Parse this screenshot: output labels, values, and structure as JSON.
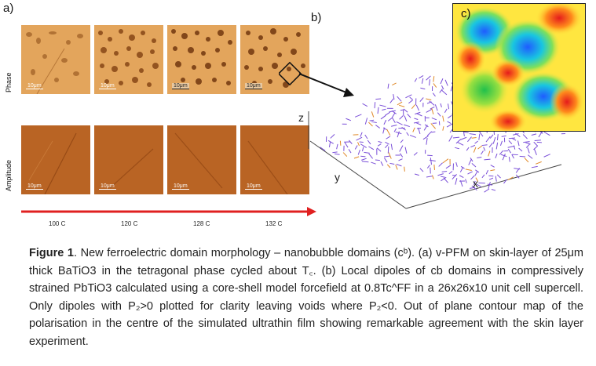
{
  "panels": {
    "a": "a)",
    "b": "b)",
    "c": "c)"
  },
  "rows": {
    "phase": "Phase",
    "amplitude": "Amplitude"
  },
  "scale_bar": "10μm",
  "temperatures": [
    "100 C",
    "120 C",
    "128 C",
    "132 C"
  ],
  "axes": {
    "z": "z",
    "y": "y",
    "x": "x"
  },
  "caption": {
    "lead": "Figure 1",
    "text": ". New ferroelectric domain morphology – nanobubble domains (cᵇ). (a) v-PFM on skin-layer of 25μm thick BaTiO3 in the tetragonal phase cycled about T꜀. (b) Local dipoles of cb domains in compressively strained PbTiO3 calculated using a core-shell model forcefield at 0.8Tc^FF in a 26x26x10 unit cell supercell. Only dipoles with P₂>0 plotted for clarity leaving voids where P₂<0. Out of plane contour map of the polarisation in the centre of the simulated ultrathin film showing remarkable agreement with the skin layer experiment."
  },
  "colors": {
    "arrow": "#e02020",
    "phase": "#e3a55c",
    "amplitude": "#b96424",
    "dipole": "#7a4fd8"
  }
}
